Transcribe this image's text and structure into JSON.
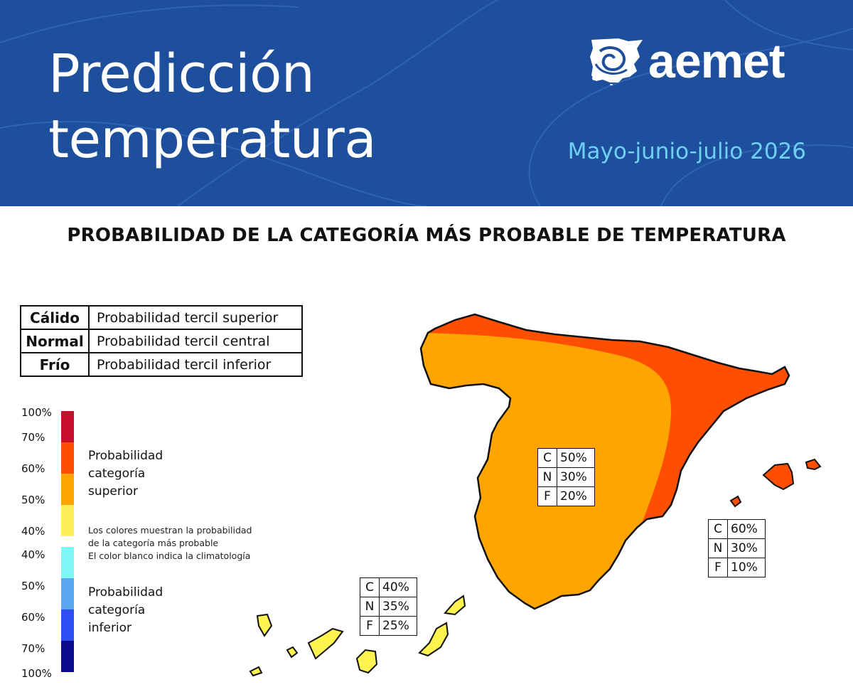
{
  "header": {
    "title_line1": "Predicción",
    "title_line2": "temperatura",
    "logo_text": "aemet",
    "period": "Mayo-junio-julio 2026",
    "colors": {
      "background": "#1d4f9c",
      "period_text": "#6fd0f6"
    }
  },
  "section_title": "PROBABILIDAD DE LA CATEGORÍA MÁS PROBABLE DE TEMPERATURA",
  "categories_table": [
    {
      "category": "Cálido",
      "description": "Probabilidad tercil superior"
    },
    {
      "category": "Normal",
      "description": "Probabilidad tercil central"
    },
    {
      "category": "Frío",
      "description": "Probabilidad tercil inferior"
    }
  ],
  "scale": {
    "upper_labels": [
      "100%",
      "70%",
      "60%",
      "50%",
      "40%"
    ],
    "lower_labels": [
      "40%",
      "50%",
      "60%",
      "70%",
      "100%"
    ],
    "upper_title_lines": [
      "Probabilidad",
      "categoría",
      "superior"
    ],
    "lower_title_lines": [
      "Probabilidad",
      "categoría",
      "inferior"
    ],
    "note_lines": [
      "Los colores muestran la probabilidad",
      "de la categoría más probable",
      "El color blanco indica la climatología"
    ],
    "upper_colors": [
      "#c8102e",
      "#fe4e00",
      "#ffa500",
      "#ffee58"
    ],
    "lower_colors": [
      "#7ef7f7",
      "#5aa7f0",
      "#2f4ff2",
      "#0a0a8a"
    ]
  },
  "map_colors": {
    "superior_60_70": "#fe4e00",
    "superior_50_60": "#ffa500",
    "superior_40_50": "#fff44f"
  },
  "probability_boxes": {
    "central_peninsula": [
      {
        "cat": "C",
        "value": "50%"
      },
      {
        "cat": "N",
        "value": "30%"
      },
      {
        "cat": "F",
        "value": "20%"
      }
    ],
    "east_balearic": [
      {
        "cat": "C",
        "value": "60%"
      },
      {
        "cat": "N",
        "value": "30%"
      },
      {
        "cat": "F",
        "value": "10%"
      }
    ],
    "canary_islands": [
      {
        "cat": "C",
        "value": "40%"
      },
      {
        "cat": "N",
        "value": "35%"
      },
      {
        "cat": "F",
        "value": "25%"
      }
    ]
  }
}
